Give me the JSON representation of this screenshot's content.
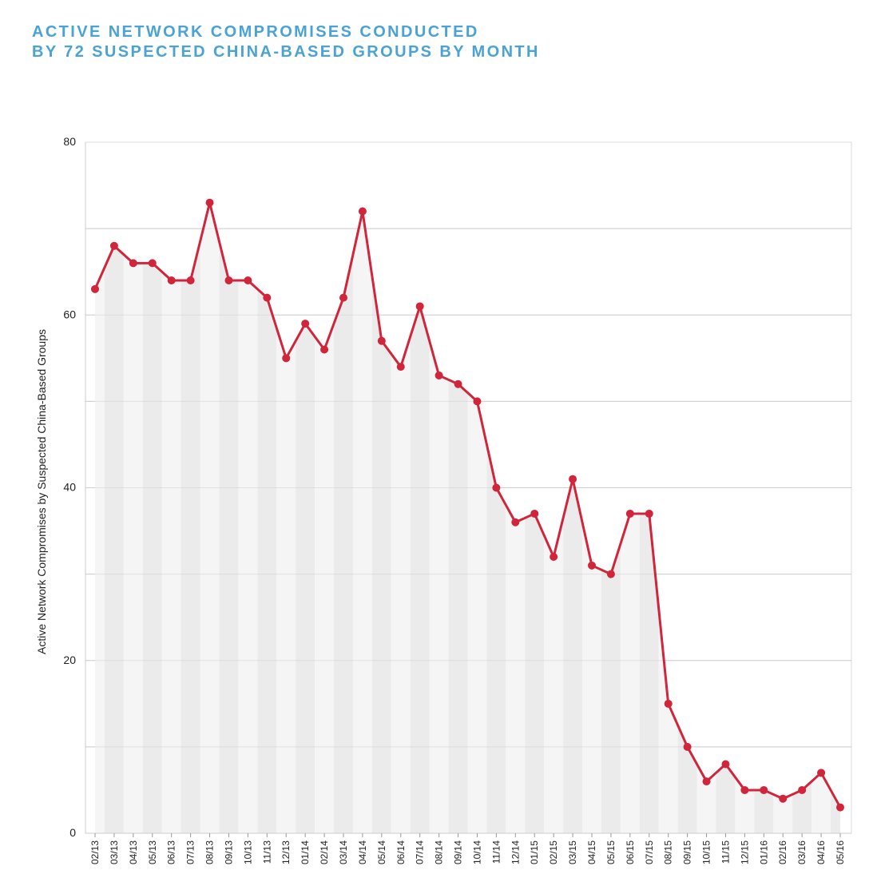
{
  "title": {
    "line1": "ACTIVE NETWORK COMPROMISES CONDUCTED",
    "line2": "BY 72 SUSPECTED CHINA-BASED GROUPS BY MONTH"
  },
  "colors": {
    "title": "#4aa3d4",
    "line": "#d0253a",
    "band_light": "#f5f5f5",
    "band_dark": "#ebebeb",
    "grid": "#cfcfcf"
  },
  "chart_data": {
    "type": "line",
    "title": "ACTIVE NETWORK COMPROMISES CONDUCTED BY 72 SUSPECTED CHINA-BASED GROUPS BY MONTH",
    "xlabel": "",
    "ylabel": "Active Network Compromises by Suspected China-Based Groups",
    "ylim": [
      0,
      80
    ],
    "yticks": [
      0,
      20,
      40,
      60,
      80
    ],
    "ygrid": [
      10,
      20,
      30,
      40,
      50,
      60,
      70
    ],
    "grid": true,
    "legend": "none",
    "categories": [
      "02/13",
      "03/13",
      "04/13",
      "05/13",
      "06/13",
      "07/13",
      "08/13",
      "09/13",
      "10/13",
      "11/13",
      "12/13",
      "01/14",
      "02/14",
      "03/14",
      "04/14",
      "05/14",
      "06/14",
      "07/14",
      "08/14",
      "09/14",
      "10/14",
      "11/14",
      "12/14",
      "01/15",
      "02/15",
      "03/15",
      "04/15",
      "05/15",
      "06/15",
      "07/15",
      "08/15",
      "09/15",
      "10/15",
      "11/15",
      "12/15",
      "01/16",
      "02/16",
      "03/16",
      "04/16",
      "05/16"
    ],
    "values": [
      63,
      68,
      66,
      66,
      64,
      64,
      73,
      64,
      64,
      62,
      55,
      59,
      56,
      62,
      72,
      57,
      54,
      61,
      53,
      52,
      50,
      40,
      36,
      37,
      32,
      41,
      31,
      30,
      37,
      37,
      15,
      10,
      6,
      8,
      5,
      5,
      4,
      5,
      7,
      3
    ]
  }
}
